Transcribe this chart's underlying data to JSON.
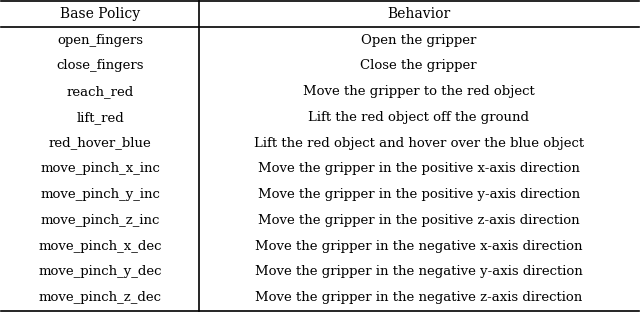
{
  "headers": [
    "Base Policy",
    "Behavior"
  ],
  "rows": [
    [
      "open_fingers",
      "Open the gripper"
    ],
    [
      "close_fingers",
      "Close the gripper"
    ],
    [
      "reach_red",
      "Move the gripper to the red object"
    ],
    [
      "lift_red",
      "Lift the red object off the ground"
    ],
    [
      "red_hover_blue",
      "Lift the red object and hover over the blue object"
    ],
    [
      "move_pinch_x_inc",
      "Move the gripper in the positive x-axis direction"
    ],
    [
      "move_pinch_y_inc",
      "Move the gripper in the positive y-axis direction"
    ],
    [
      "move_pinch_z_inc",
      "Move the gripper in the positive z-axis direction"
    ],
    [
      "move_pinch_x_dec",
      "Move the gripper in the negative x-axis direction"
    ],
    [
      "move_pinch_y_dec",
      "Move the gripper in the negative y-axis direction"
    ],
    [
      "move_pinch_z_dec",
      "Move the gripper in the negative z-axis direction"
    ]
  ],
  "col_split": 0.31,
  "background_color": "#ffffff",
  "text_color": "#000000",
  "font_size": 9.5,
  "header_font_size": 10.0,
  "line_color": "#000000",
  "line_width": 1.2
}
